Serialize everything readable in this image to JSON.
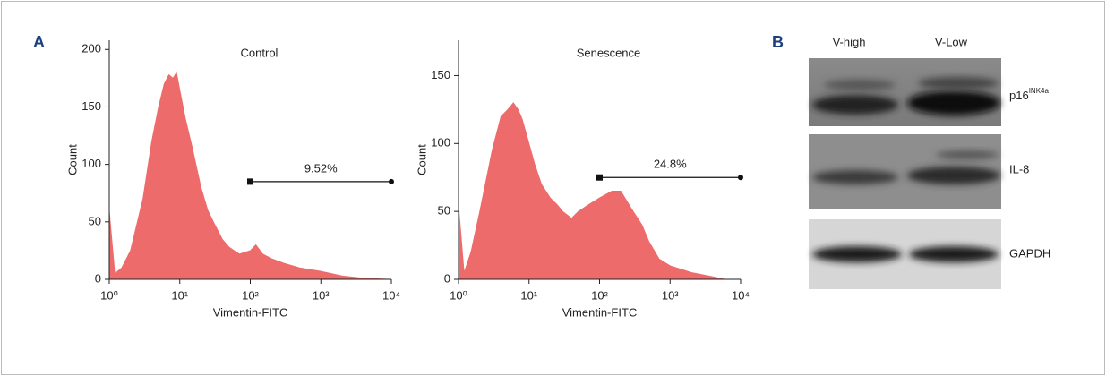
{
  "panel_labels": [
    "A",
    "B"
  ],
  "chart_data": [
    {
      "type": "area",
      "title": "Control",
      "xlabel": "Vimentin-FITC",
      "ylabel": "Count",
      "xscale": "log",
      "color": "#ee6b6b",
      "x": [
        1,
        1.2,
        1.5,
        2,
        3,
        4,
        5,
        6,
        7,
        8,
        9,
        10,
        12,
        15,
        20,
        25,
        30,
        40,
        50,
        70,
        100,
        120,
        150,
        200,
        300,
        500,
        1000,
        2000,
        4000,
        10000
      ],
      "values": [
        60,
        5,
        10,
        25,
        70,
        120,
        150,
        170,
        178,
        175,
        180,
        165,
        140,
        115,
        80,
        60,
        50,
        35,
        28,
        22,
        25,
        30,
        22,
        18,
        14,
        10,
        7,
        3,
        1,
        0
      ],
      "xlim": [
        1,
        10000
      ],
      "ylim": [
        0,
        208
      ],
      "xticks": [
        {
          "value": 1,
          "label": "10⁰"
        },
        {
          "value": 10,
          "label": "10¹"
        },
        {
          "value": 100,
          "label": "10²"
        },
        {
          "value": 1000,
          "label": "10³"
        },
        {
          "value": 10000,
          "label": "10⁴"
        }
      ],
      "yticks": [
        0,
        50,
        100,
        150,
        200
      ],
      "gate": {
        "x": [
          100,
          10000
        ],
        "y": 85,
        "label": "9.52%"
      }
    },
    {
      "type": "area",
      "title": "Senescence",
      "xlabel": "Vimentin-FITC",
      "ylabel": "Count",
      "xscale": "log",
      "color": "#ee6b6b",
      "x": [
        1,
        1.2,
        1.5,
        2,
        3,
        4,
        5,
        6,
        7,
        8,
        10,
        12,
        15,
        20,
        25,
        30,
        40,
        50,
        70,
        100,
        150,
        200,
        300,
        400,
        500,
        700,
        1000,
        2000,
        4000,
        6000,
        10000
      ],
      "values": [
        55,
        5,
        20,
        50,
        95,
        120,
        125,
        130,
        125,
        118,
        100,
        85,
        70,
        60,
        55,
        50,
        45,
        50,
        55,
        60,
        65,
        65,
        50,
        40,
        28,
        15,
        10,
        5,
        2,
        0,
        0
      ],
      "xlim": [
        1,
        10000
      ],
      "ylim": [
        0,
        176
      ],
      "xticks": [
        {
          "value": 1,
          "label": "10⁰"
        },
        {
          "value": 10,
          "label": "10¹"
        },
        {
          "value": 100,
          "label": "10²"
        },
        {
          "value": 1000,
          "label": "10³"
        },
        {
          "value": 10000,
          "label": "10⁴"
        }
      ],
      "yticks": [
        0,
        50,
        100,
        150
      ],
      "gate": {
        "x": [
          100,
          10000
        ],
        "y": 75,
        "label": "24.8%"
      }
    }
  ],
  "blot": {
    "lanes": [
      "V-high",
      "V-Low"
    ],
    "rows": [
      {
        "label": "p16",
        "superscript": "INK4a"
      },
      {
        "label": "IL-8"
      },
      {
        "label": "GAPDH"
      }
    ]
  }
}
